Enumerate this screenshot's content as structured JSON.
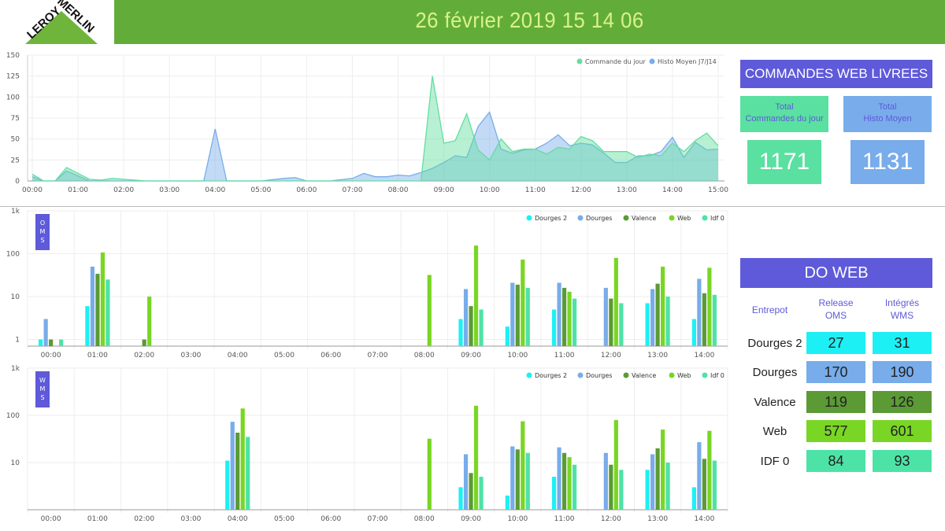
{
  "header": {
    "logo_text_top": "LEROY",
    "logo_text_bottom": "MERLIN",
    "datetime": "26 février 2019 15 14 06",
    "bg_color": "#62ad3a",
    "datetime_color": "#d9f28a"
  },
  "line_chart": {
    "chart_data": {
      "type": "area",
      "x": [
        "00:00",
        "01:00",
        "02:00",
        "03:00",
        "04:00",
        "05:00",
        "06:00",
        "07:00",
        "08:00",
        "09:00",
        "10:00",
        "11:00",
        "12:00",
        "13:00",
        "14:00",
        "15:00"
      ],
      "ylim": [
        0,
        150
      ],
      "yticks": [
        0,
        25,
        50,
        75,
        100,
        125,
        150
      ],
      "grid": true,
      "legend": "top-right",
      "series": [
        {
          "name": "Commande du jour",
          "color": "#62dea0",
          "points": [
            [
              0,
              8
            ],
            [
              0.25,
              0
            ],
            [
              0.5,
              0
            ],
            [
              0.75,
              16
            ],
            [
              1.25,
              2
            ],
            [
              1.5,
              1
            ],
            [
              1.75,
              3
            ],
            [
              2.0,
              2
            ],
            [
              2.5,
              0
            ],
            [
              3.0,
              0
            ],
            [
              4.0,
              0
            ],
            [
              5.0,
              0
            ],
            [
              6.0,
              0
            ],
            [
              7.0,
              0
            ],
            [
              8.0,
              0
            ],
            [
              8.5,
              0
            ],
            [
              8.75,
              125
            ],
            [
              9.0,
              45
            ],
            [
              9.25,
              48
            ],
            [
              9.5,
              80
            ],
            [
              9.75,
              37
            ],
            [
              10.0,
              25
            ],
            [
              10.25,
              50
            ],
            [
              10.5,
              35
            ],
            [
              10.75,
              38
            ],
            [
              11.0,
              38
            ],
            [
              11.25,
              32
            ],
            [
              11.5,
              40
            ],
            [
              11.75,
              38
            ],
            [
              12.0,
              53
            ],
            [
              12.25,
              48
            ],
            [
              12.5,
              35
            ],
            [
              12.75,
              35
            ],
            [
              13.0,
              35
            ],
            [
              13.25,
              28
            ],
            [
              13.5,
              32
            ],
            [
              13.75,
              30
            ],
            [
              14.0,
              45
            ],
            [
              14.25,
              35
            ],
            [
              14.5,
              48
            ],
            [
              14.75,
              57
            ],
            [
              15.0,
              42
            ]
          ]
        },
        {
          "name": "Histo Moyen J7/J14",
          "color": "#78acea",
          "points": [
            [
              0,
              5
            ],
            [
              0.25,
              0
            ],
            [
              0.5,
              0
            ],
            [
              0.75,
              12
            ],
            [
              1.25,
              0
            ],
            [
              2.0,
              0
            ],
            [
              3.0,
              0
            ],
            [
              3.75,
              0
            ],
            [
              4.0,
              62
            ],
            [
              4.25,
              0
            ],
            [
              5.0,
              0
            ],
            [
              5.5,
              3
            ],
            [
              5.75,
              4
            ],
            [
              6.0,
              0
            ],
            [
              6.5,
              0
            ],
            [
              7.0,
              3
            ],
            [
              7.25,
              9
            ],
            [
              7.5,
              5
            ],
            [
              7.75,
              5
            ],
            [
              8.0,
              7
            ],
            [
              8.25,
              6
            ],
            [
              8.5,
              10
            ],
            [
              8.75,
              15
            ],
            [
              9.0,
              22
            ],
            [
              9.25,
              30
            ],
            [
              9.5,
              28
            ],
            [
              9.75,
              65
            ],
            [
              10.0,
              82
            ],
            [
              10.25,
              38
            ],
            [
              10.5,
              33
            ],
            [
              10.75,
              37
            ],
            [
              11.0,
              38
            ],
            [
              11.25,
              45
            ],
            [
              11.5,
              55
            ],
            [
              11.75,
              42
            ],
            [
              12.0,
              45
            ],
            [
              12.25,
              43
            ],
            [
              12.5,
              33
            ],
            [
              12.75,
              22
            ],
            [
              13.0,
              22
            ],
            [
              13.25,
              30
            ],
            [
              13.5,
              30
            ],
            [
              13.75,
              35
            ],
            [
              14.0,
              52
            ],
            [
              14.25,
              28
            ],
            [
              14.5,
              46
            ],
            [
              14.75,
              37
            ],
            [
              15.0,
              38
            ]
          ]
        }
      ]
    }
  },
  "oms_chart": {
    "side_label": "OMS",
    "chart_data": {
      "type": "bar",
      "scale": "log",
      "ylim": [
        0.7,
        1000
      ],
      "yticks": [
        {
          "v": 1,
          "label": "1"
        },
        {
          "v": 10,
          "label": "10"
        },
        {
          "v": 100,
          "label": "100"
        },
        {
          "v": 1000,
          "label": "1k"
        }
      ],
      "categories": [
        "00:00",
        "01:00",
        "02:00",
        "03:00",
        "04:00",
        "05:00",
        "06:00",
        "07:00",
        "08:00",
        "09:00",
        "10:00",
        "11:00",
        "12:00",
        "13:00",
        "14:00"
      ],
      "legend": "top-right",
      "series": [
        {
          "name": "Dourges 2",
          "color": "#1df0f4",
          "values": [
            1,
            6,
            null,
            null,
            null,
            null,
            null,
            null,
            null,
            3,
            2,
            5,
            null,
            7,
            3
          ]
        },
        {
          "name": "Dourges",
          "color": "#78acea",
          "values": [
            3,
            50,
            null,
            null,
            null,
            null,
            null,
            null,
            null,
            15,
            21,
            21,
            16,
            15,
            26
          ]
        },
        {
          "name": "Valence",
          "color": "#5b9a35",
          "values": [
            1,
            34,
            1,
            null,
            null,
            null,
            null,
            null,
            null,
            6,
            19,
            16,
            9,
            20,
            12
          ]
        },
        {
          "name": "Web",
          "color": "#79d624",
          "values": [
            null,
            107,
            10,
            null,
            null,
            null,
            null,
            null,
            32,
            155,
            73,
            13,
            80,
            50,
            47
          ]
        },
        {
          "name": "Idf 0",
          "color": "#4de3a6",
          "values": [
            1,
            25,
            null,
            null,
            null,
            null,
            null,
            null,
            null,
            5,
            16,
            9,
            7,
            10,
            11
          ]
        }
      ]
    }
  },
  "wms_chart": {
    "side_label": "WMS",
    "chart_data": {
      "type": "bar",
      "scale": "log",
      "ylim": [
        1,
        1000
      ],
      "yticks": [
        {
          "v": 10,
          "label": "10"
        },
        {
          "v": 100,
          "label": "100"
        },
        {
          "v": 1000,
          "label": "1k"
        }
      ],
      "categories": [
        "00:00",
        "01:00",
        "02:00",
        "03:00",
        "04:00",
        "05:00",
        "06:00",
        "07:00",
        "08:00",
        "09:00",
        "10:00",
        "11:00",
        "12:00",
        "13:00",
        "14:00"
      ],
      "legend": "top-right",
      "series": [
        {
          "name": "Dourges 2",
          "color": "#1df0f4",
          "values": [
            null,
            null,
            null,
            null,
            11,
            null,
            null,
            null,
            null,
            3,
            2,
            5,
            null,
            7,
            3
          ]
        },
        {
          "name": "Dourges",
          "color": "#78acea",
          "values": [
            null,
            null,
            null,
            null,
            73,
            null,
            null,
            null,
            null,
            15,
            22,
            21,
            16,
            15,
            27
          ]
        },
        {
          "name": "Valence",
          "color": "#5b9a35",
          "values": [
            null,
            null,
            null,
            null,
            43,
            null,
            null,
            null,
            null,
            6,
            19,
            16,
            9,
            20,
            12
          ]
        },
        {
          "name": "Web",
          "color": "#79d624",
          "values": [
            null,
            null,
            null,
            null,
            140,
            null,
            null,
            null,
            32,
            160,
            75,
            13,
            80,
            50,
            47
          ]
        },
        {
          "name": "Idf 0",
          "color": "#4de3a6",
          "values": [
            null,
            null,
            null,
            null,
            35,
            null,
            null,
            null,
            null,
            5,
            16,
            9,
            7,
            10,
            11
          ]
        }
      ]
    }
  },
  "commandes": {
    "title": "COMMANDES WEB LIVREES",
    "total_jour_label": "Total\nCommandes du jour",
    "total_jour_value": "1171",
    "total_jour_color": "#5ae0a0",
    "total_histo_label": "Total\nHisto Moyen",
    "total_histo_value": "1131",
    "total_histo_color": "#78acea"
  },
  "do_web": {
    "title": "DO WEB",
    "col_entrepot": "Entrepot",
    "col_release": "Release\nOMS",
    "col_integres": "Intégrés\nWMS",
    "rows": [
      {
        "name": "Dourges 2",
        "release": "27",
        "integres": "31",
        "color": "#1df0f4"
      },
      {
        "name": "Dourges",
        "release": "170",
        "integres": "190",
        "color": "#78acea"
      },
      {
        "name": "Valence",
        "release": "119",
        "integres": "126",
        "color": "#5b9a35"
      },
      {
        "name": "Web",
        "release": "577",
        "integres": "601",
        "color": "#79d624"
      },
      {
        "name": "IDF 0",
        "release": "84",
        "integres": "93",
        "color": "#4de3a6"
      }
    ]
  }
}
